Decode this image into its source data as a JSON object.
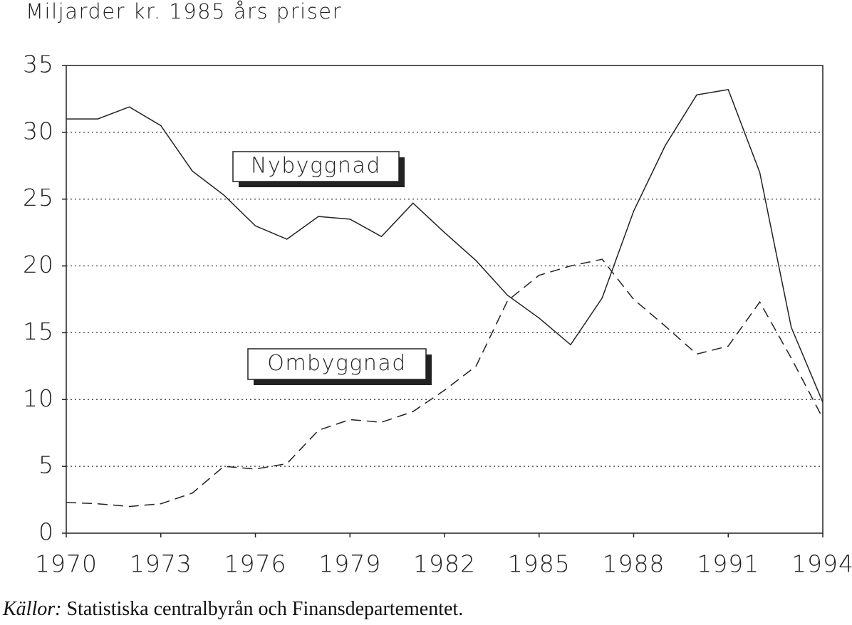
{
  "chart_data": {
    "type": "line",
    "ylabel": "Miljarder kr. 1985 års priser",
    "x": [
      1970,
      1971,
      1972,
      1973,
      1974,
      1975,
      1976,
      1977,
      1978,
      1979,
      1980,
      1981,
      1982,
      1983,
      1984,
      1985,
      1986,
      1987,
      1988,
      1989,
      1990,
      1991,
      1992,
      1993,
      1994
    ],
    "series": [
      {
        "name": "Nybyggnad",
        "color": "#222222",
        "style": "solid",
        "values": [
          31.0,
          31.0,
          31.9,
          30.5,
          27.1,
          25.3,
          23.0,
          22.0,
          23.7,
          23.5,
          22.2,
          24.7,
          22.5,
          20.4,
          17.8,
          16.1,
          14.1,
          17.6,
          24.1,
          29.0,
          32.8,
          33.2,
          27.0,
          15.4,
          9.8
        ]
      },
      {
        "name": "Ombyggnad",
        "color": "#222222",
        "style": "dashed",
        "values": [
          2.3,
          2.2,
          2.0,
          2.2,
          3.0,
          5.0,
          4.8,
          5.2,
          7.7,
          8.5,
          8.3,
          9.1,
          10.7,
          12.5,
          17.4,
          19.3,
          20.0,
          20.5,
          17.5,
          15.5,
          13.4,
          14.0,
          17.3,
          13.1,
          8.6
        ]
      }
    ],
    "xlim": [
      1970,
      1994
    ],
    "xticks": [
      1970,
      1973,
      1976,
      1979,
      1982,
      1985,
      1988,
      1991,
      1994
    ],
    "ylim": [
      0,
      35
    ],
    "yticks": [
      0,
      5,
      10,
      15,
      20,
      25,
      30,
      35
    ],
    "grid": true,
    "source": {
      "prefix": "Källor:",
      "text": "Statistiska centralbyrån och Finansdepartementet."
    }
  }
}
